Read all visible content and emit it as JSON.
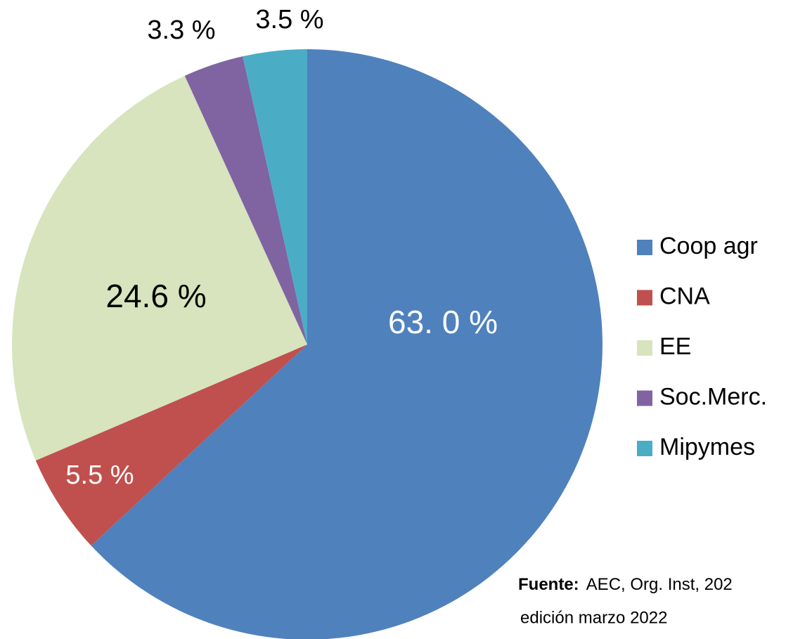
{
  "chart_data": {
    "type": "pie",
    "categories": [
      "Coop agr",
      "CNA",
      "EE",
      "Soc.Merc.",
      "Mipymes"
    ],
    "values": [
      63.0,
      5.5,
      24.6,
      3.3,
      3.5
    ],
    "value_labels": [
      "63. 0 %",
      "5.5 %",
      "24.6 %",
      "3.3 %",
      "3.5 %"
    ],
    "colors": [
      "#4f81bd",
      "#c0504d",
      "#d7e4bd",
      "#8064a2",
      "#4bacc6"
    ],
    "legend": "right",
    "source_label": "Fuente:",
    "source_text": "AEC, Org. Inst, 202",
    "source_edition": "edición marzo 2022"
  }
}
